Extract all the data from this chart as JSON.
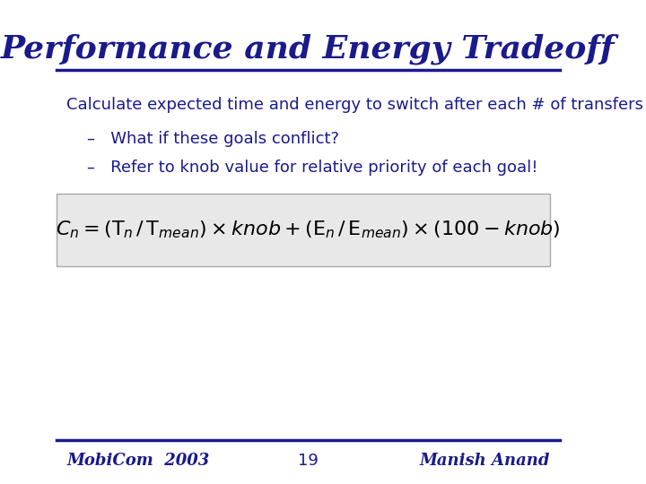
{
  "title": "Performance and Energy Tradeoff",
  "title_color": "#1a1a8c",
  "title_fontsize": 26,
  "bg_color": "#ffffff",
  "line_color": "#1a1a8c",
  "body_color": "#1a1a8c",
  "body_fontsize": 13,
  "main_text": "Calculate expected time and energy to switch after each # of transfers",
  "bullet1": "–   What if these goals conflict?",
  "bullet2": "–   Refer to knob value for relative priority of each goal!",
  "formula_box_color": "#e8e8e8",
  "footer_left": "MobiCom  2003",
  "footer_center": "19",
  "footer_right": "Manish Anand",
  "footer_color": "#1a1a8c",
  "footer_fontsize": 13
}
